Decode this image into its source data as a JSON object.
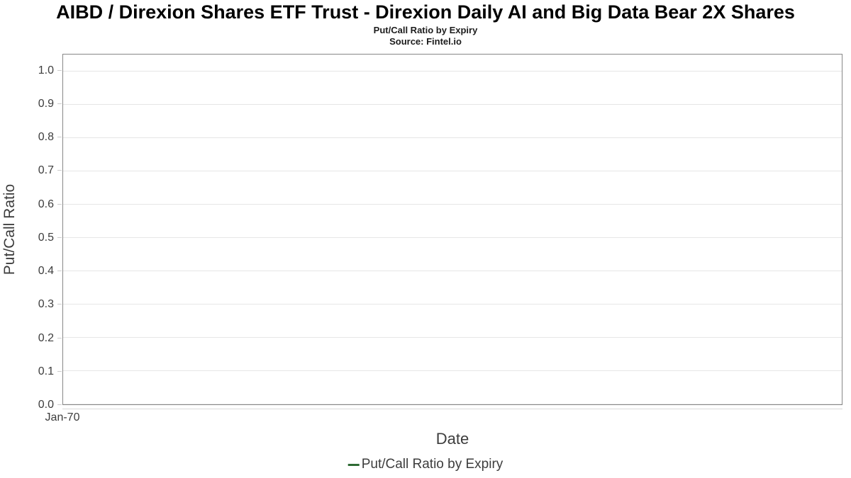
{
  "header": {
    "title": "AIBD / Direxion Shares ETF Trust - Direxion Daily AI and Big Data Bear 2X Shares",
    "subtitle": "Put/Call Ratio by Expiry",
    "source": "Source: Fintel.io"
  },
  "chart_data": {
    "type": "line",
    "title": "AIBD / Direxion Shares ETF Trust - Direxion Daily AI and Big Data Bear 2X Shares",
    "subtitle": "Put/Call Ratio by Expiry",
    "source": "Source: Fintel.io",
    "xlabel": "Date",
    "ylabel": "Put/Call Ratio",
    "x_ticks": [
      "Jan-70"
    ],
    "y_ticks": [
      0.0,
      0.1,
      0.2,
      0.3,
      0.4,
      0.5,
      0.6,
      0.7,
      0.8,
      0.9,
      1.0
    ],
    "ylim": [
      0,
      1.05
    ],
    "grid": "horizontal-only",
    "legend_position": "bottom",
    "series": [
      {
        "name": "Put/Call Ratio by Expiry",
        "color": "#2d6a33",
        "x": [],
        "values": []
      }
    ]
  },
  "colors": {
    "plot_border": "#878787",
    "gridline": "#e6e6e6",
    "tick_mark": "#cccccc",
    "text": "#3d3d3d",
    "series_green": "#2d6a33"
  }
}
